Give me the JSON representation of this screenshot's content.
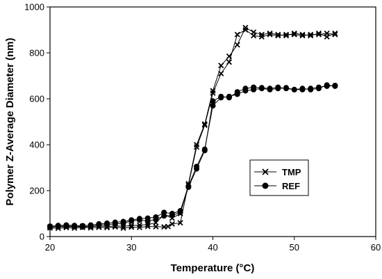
{
  "chart_data": {
    "type": "line",
    "xlabel": "Temperature (°C)",
    "ylabel": "Polymer Z-Average Diameter (nm)",
    "xlim": [
      20,
      60
    ],
    "ylim": [
      0,
      1000
    ],
    "xticks": [
      20,
      30,
      40,
      50,
      60
    ],
    "yticks": [
      0,
      200,
      400,
      600,
      800,
      1000
    ],
    "grid": false,
    "legend_position": "center-right",
    "series": [
      {
        "name": "TMP",
        "marker": "x",
        "color": "#000000",
        "points": [
          [
            20,
            38
          ],
          [
            21,
            36
          ],
          [
            22,
            39
          ],
          [
            23,
            37
          ],
          [
            24,
            40
          ],
          [
            25,
            38
          ],
          [
            26,
            40
          ],
          [
            27,
            39
          ],
          [
            28,
            42
          ],
          [
            29,
            37
          ],
          [
            30,
            41
          ],
          [
            31,
            40
          ],
          [
            32,
            44
          ],
          [
            33,
            43
          ],
          [
            34,
            42
          ],
          [
            34.5,
            44
          ],
          [
            35,
            55
          ],
          [
            36,
            60
          ],
          [
            37,
            230
          ],
          [
            38,
            400
          ],
          [
            39,
            490
          ],
          [
            40,
            635
          ],
          [
            41,
            745
          ],
          [
            42,
            785
          ],
          [
            43,
            835
          ],
          [
            44,
            910
          ],
          [
            45,
            890
          ],
          [
            46,
            880
          ],
          [
            47,
            885
          ],
          [
            48,
            880
          ],
          [
            49,
            875
          ],
          [
            50,
            885
          ],
          [
            51,
            880
          ],
          [
            52,
            875
          ],
          [
            53,
            885
          ],
          [
            54,
            870
          ],
          [
            55,
            885
          ]
        ],
        "points_alt": [
          [
            20,
            42
          ],
          [
            21,
            44
          ],
          [
            22,
            42
          ],
          [
            23,
            44
          ],
          [
            24,
            45
          ],
          [
            25,
            43
          ],
          [
            26,
            46
          ],
          [
            27,
            44
          ],
          [
            28,
            46
          ],
          [
            29,
            45
          ],
          [
            30,
            48
          ],
          [
            31,
            50
          ],
          [
            32,
            52
          ],
          [
            33,
            60
          ],
          [
            34,
            95
          ],
          [
            35,
            80
          ],
          [
            36,
            100
          ],
          [
            37,
            225
          ],
          [
            38,
            390
          ],
          [
            39,
            485
          ],
          [
            40,
            625
          ],
          [
            41,
            710
          ],
          [
            42,
            760
          ],
          [
            43,
            880
          ],
          [
            44,
            900
          ],
          [
            45,
            875
          ],
          [
            46,
            870
          ],
          [
            47,
            880
          ],
          [
            48,
            875
          ],
          [
            49,
            880
          ],
          [
            50,
            880
          ],
          [
            51,
            875
          ],
          [
            52,
            880
          ],
          [
            53,
            880
          ],
          [
            54,
            885
          ],
          [
            55,
            880
          ]
        ]
      },
      {
        "name": "REF",
        "marker": "circle",
        "color": "#000000",
        "points": [
          [
            20,
            45
          ],
          [
            21,
            48
          ],
          [
            22,
            50
          ],
          [
            23,
            48
          ],
          [
            24,
            47
          ],
          [
            25,
            50
          ],
          [
            26,
            55
          ],
          [
            27,
            58
          ],
          [
            28,
            62
          ],
          [
            29,
            65
          ],
          [
            30,
            72
          ],
          [
            31,
            78
          ],
          [
            32,
            80
          ],
          [
            33,
            85
          ],
          [
            34,
            105
          ],
          [
            35,
            100
          ],
          [
            36,
            112
          ],
          [
            37,
            220
          ],
          [
            38,
            305
          ],
          [
            39,
            380
          ],
          [
            40,
            570
          ],
          [
            41,
            605
          ],
          [
            42,
            610
          ],
          [
            43,
            620
          ],
          [
            44,
            635
          ],
          [
            45,
            640
          ],
          [
            46,
            645
          ],
          [
            47,
            640
          ],
          [
            48,
            645
          ],
          [
            49,
            648
          ],
          [
            50,
            640
          ],
          [
            51,
            640
          ],
          [
            52,
            645
          ],
          [
            53,
            650
          ],
          [
            54,
            655
          ],
          [
            55,
            658
          ]
        ],
        "points_alt": [
          [
            20,
            40
          ],
          [
            21,
            44
          ],
          [
            22,
            46
          ],
          [
            23,
            44
          ],
          [
            24,
            42
          ],
          [
            25,
            44
          ],
          [
            26,
            50
          ],
          [
            27,
            52
          ],
          [
            28,
            55
          ],
          [
            29,
            58
          ],
          [
            30,
            68
          ],
          [
            31,
            72
          ],
          [
            32,
            68
          ],
          [
            33,
            75
          ],
          [
            34,
            90
          ],
          [
            35,
            92
          ],
          [
            36,
            105
          ],
          [
            37,
            215
          ],
          [
            38,
            295
          ],
          [
            39,
            375
          ],
          [
            40,
            590
          ],
          [
            41,
            610
          ],
          [
            42,
            605
          ],
          [
            43,
            630
          ],
          [
            44,
            645
          ],
          [
            45,
            650
          ],
          [
            46,
            648
          ],
          [
            47,
            645
          ],
          [
            48,
            650
          ],
          [
            49,
            645
          ],
          [
            50,
            640
          ],
          [
            51,
            645
          ],
          [
            52,
            640
          ],
          [
            53,
            645
          ],
          [
            54,
            660
          ],
          [
            55,
            655
          ]
        ]
      }
    ]
  }
}
